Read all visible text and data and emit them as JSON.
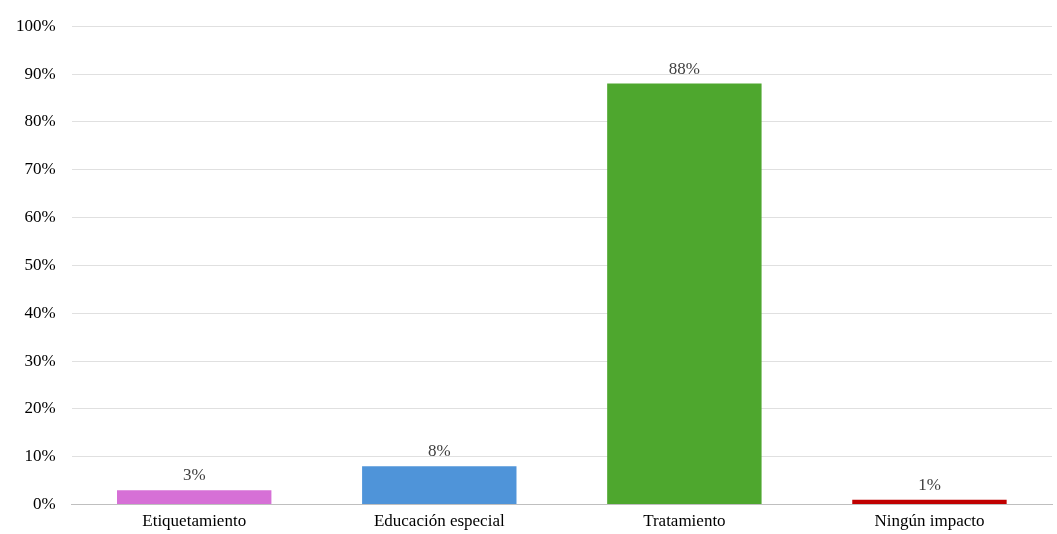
{
  "chart_data": {
    "type": "bar",
    "categories": [
      "Etiquetamiento",
      "Educación especial",
      "Tratamiento",
      "Ningún impacto"
    ],
    "values": [
      3,
      8,
      88,
      1
    ],
    "colors": [
      "#d670d6",
      "#4f94d9",
      "#4ea72e",
      "#c00000"
    ],
    "value_labels": [
      "3%",
      "8%",
      "88%",
      "1%"
    ],
    "ylim": [
      0,
      100
    ],
    "yticks": [
      {
        "value": 0,
        "label": "0%"
      },
      {
        "value": 10,
        "label": "10%"
      },
      {
        "value": 20,
        "label": "20%"
      },
      {
        "value": 30,
        "label": "30%"
      },
      {
        "value": 40,
        "label": "40%"
      },
      {
        "value": 50,
        "label": "50%"
      },
      {
        "value": 60,
        "label": "60%"
      },
      {
        "value": 70,
        "label": "70%"
      },
      {
        "value": 80,
        "label": "80%"
      },
      {
        "value": 90,
        "label": "90%"
      },
      {
        "value": 100,
        "label": "100%"
      }
    ],
    "grid": "y",
    "legend": false
  }
}
